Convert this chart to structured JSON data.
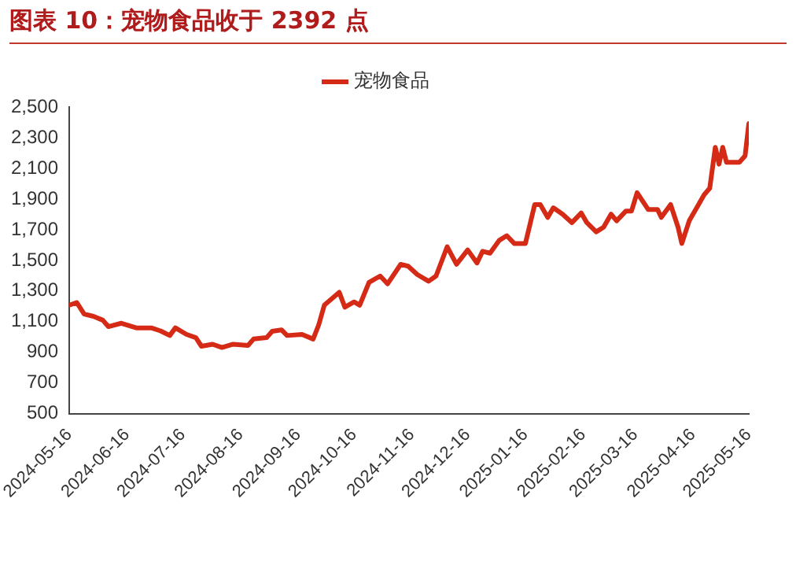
{
  "chart_data": {
    "type": "line",
    "title": "图表 10：宠物食品收于 2392 点",
    "x": [
      "2024-05-16",
      "2024-05-20",
      "2024-05-24",
      "2024-05-29",
      "2024-06-03",
      "2024-06-06",
      "2024-06-13",
      "2024-06-21",
      "2024-06-29",
      "2024-07-04",
      "2024-07-09",
      "2024-07-12",
      "2024-07-18",
      "2024-07-23",
      "2024-07-26",
      "2024-08-01",
      "2024-08-06",
      "2024-08-12",
      "2024-08-20",
      "2024-08-23",
      "2024-08-30",
      "2024-09-02",
      "2024-09-07",
      "2024-09-10",
      "2024-09-18",
      "2024-09-24",
      "2024-09-27",
      "2024-09-30",
      "2024-10-08",
      "2024-10-11",
      "2024-10-16",
      "2024-10-19",
      "2024-10-24",
      "2024-10-30",
      "2024-11-03",
      "2024-11-10",
      "2024-11-14",
      "2024-11-19",
      "2024-11-25",
      "2024-11-29",
      "2024-12-05",
      "2024-12-10",
      "2024-12-16",
      "2024-12-21",
      "2024-12-24",
      "2024-12-28",
      "2025-01-02",
      "2025-01-06",
      "2025-01-10",
      "2025-01-16",
      "2025-01-21",
      "2025-01-24",
      "2025-01-28",
      "2025-01-31",
      "2025-02-05",
      "2025-02-10",
      "2025-02-15",
      "2025-02-18",
      "2025-02-23",
      "2025-02-27",
      "2025-03-03",
      "2025-03-06",
      "2025-03-11",
      "2025-03-14",
      "2025-03-17",
      "2025-03-23",
      "2025-03-28",
      "2025-03-30",
      "2025-04-04",
      "2025-04-08",
      "2025-04-10",
      "2025-04-14",
      "2025-04-19",
      "2025-04-22",
      "2025-04-25",
      "2025-04-28",
      "2025-04-30",
      "2025-05-02",
      "2025-05-04",
      "2025-05-11",
      "2025-05-14",
      "2025-05-16"
    ],
    "series": [
      {
        "name": "宠物食品",
        "color": "#d42a16",
        "values": [
          1208,
          1225,
          1150,
          1135,
          1110,
          1068,
          1090,
          1060,
          1060,
          1040,
          1010,
          1060,
          1017,
          996,
          940,
          953,
          932,
          953,
          945,
          987,
          996,
          1038,
          1047,
          1010,
          1017,
          987,
          1080,
          1208,
          1292,
          1195,
          1229,
          1208,
          1356,
          1398,
          1347,
          1474,
          1462,
          1407,
          1364,
          1398,
          1589,
          1474,
          1568,
          1483,
          1559,
          1547,
          1631,
          1661,
          1610,
          1610,
          1864,
          1864,
          1780,
          1843,
          1801,
          1746,
          1809,
          1746,
          1686,
          1716,
          1801,
          1758,
          1822,
          1822,
          1941,
          1831,
          1831,
          1780,
          1864,
          1716,
          1610,
          1758,
          1864,
          1928,
          1970,
          2237,
          2127,
          2237,
          2140,
          2140,
          2182,
          2392
        ]
      }
    ],
    "xlim": [
      "2024-05-16",
      "2025-05-16"
    ],
    "xticks": [
      "2024-05-16",
      "2024-06-16",
      "2024-07-16",
      "2024-08-16",
      "2024-09-16",
      "2024-10-16",
      "2024-11-16",
      "2024-12-16",
      "2025-01-16",
      "2025-02-16",
      "2025-03-16",
      "2025-04-16",
      "2025-05-16"
    ],
    "ylim": [
      500,
      2500
    ],
    "yticks": [
      {
        "value": 500,
        "label": "500"
      },
      {
        "value": 700,
        "label": "700"
      },
      {
        "value": 900,
        "label": "900"
      },
      {
        "value": 1100,
        "label": "1,100"
      },
      {
        "value": 1300,
        "label": "1,300"
      },
      {
        "value": 1500,
        "label": "1,500"
      },
      {
        "value": 1700,
        "label": "1,700"
      },
      {
        "value": 1900,
        "label": "1,900"
      },
      {
        "value": 2100,
        "label": "2,100"
      },
      {
        "value": 2300,
        "label": "2,300"
      },
      {
        "value": 2500,
        "label": "2,500"
      }
    ],
    "grid": false,
    "legend": "top",
    "marker": "none",
    "line_style": "solid"
  }
}
